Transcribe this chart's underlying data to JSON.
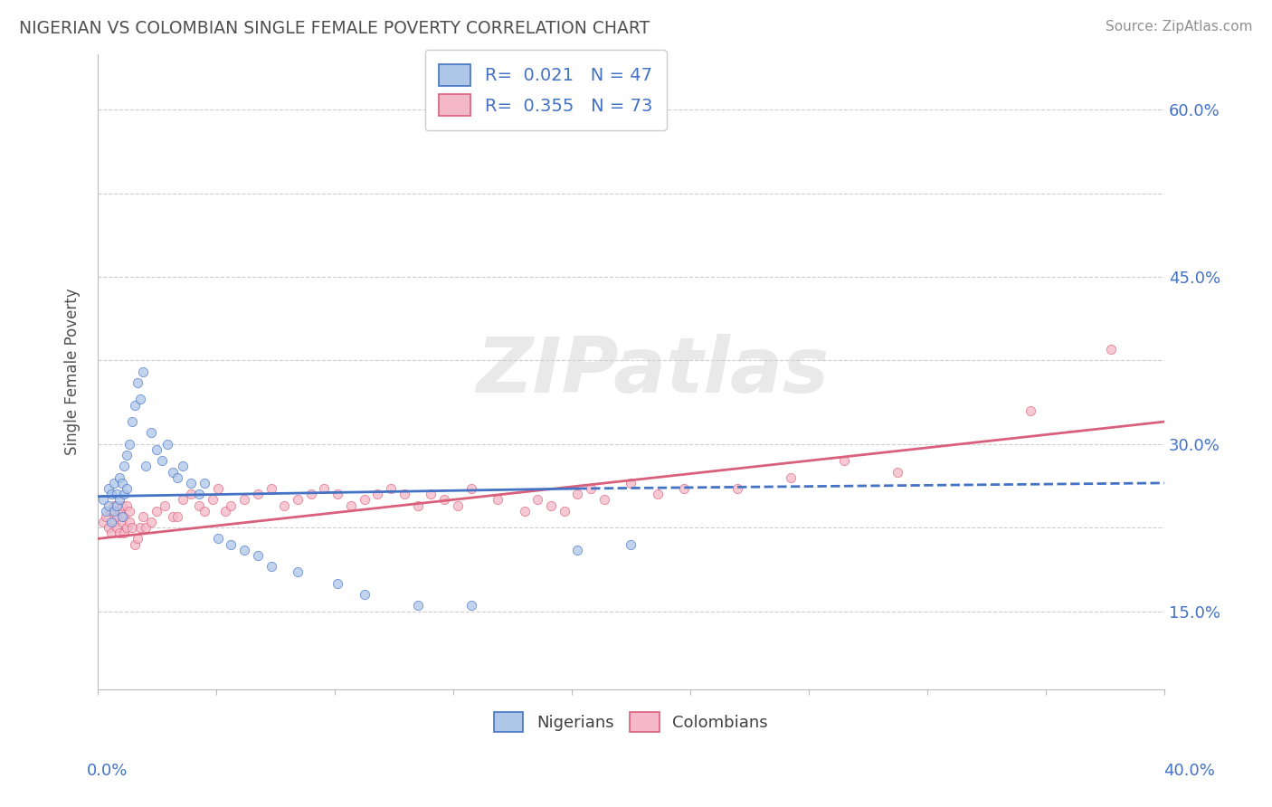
{
  "title": "NIGERIAN VS COLOMBIAN SINGLE FEMALE POVERTY CORRELATION CHART",
  "source": "Source: ZipAtlas.com",
  "ylabel": "Single Female Poverty",
  "watermark": "ZIPatlas",
  "legend_entries": [
    {
      "label": "Nigerians",
      "R": "0.021",
      "N": "47",
      "color": "#aec6e8",
      "edge": "#4472c4"
    },
    {
      "label": "Colombians",
      "R": "0.355",
      "N": "73",
      "color": "#f4b8c8",
      "edge": "#d9607a"
    }
  ],
  "nigerian_scatter_x": [
    0.002,
    0.003,
    0.004,
    0.004,
    0.005,
    0.005,
    0.006,
    0.006,
    0.007,
    0.007,
    0.008,
    0.008,
    0.009,
    0.009,
    0.01,
    0.01,
    0.011,
    0.011,
    0.012,
    0.013,
    0.014,
    0.015,
    0.016,
    0.017,
    0.018,
    0.02,
    0.022,
    0.024,
    0.026,
    0.028,
    0.03,
    0.032,
    0.035,
    0.038,
    0.04,
    0.045,
    0.05,
    0.055,
    0.06,
    0.065,
    0.075,
    0.09,
    0.1,
    0.12,
    0.14,
    0.18,
    0.2
  ],
  "nigerian_scatter_y": [
    0.25,
    0.24,
    0.245,
    0.26,
    0.23,
    0.255,
    0.265,
    0.24,
    0.255,
    0.245,
    0.27,
    0.25,
    0.235,
    0.265,
    0.28,
    0.255,
    0.29,
    0.26,
    0.3,
    0.32,
    0.335,
    0.355,
    0.34,
    0.365,
    0.28,
    0.31,
    0.295,
    0.285,
    0.3,
    0.275,
    0.27,
    0.28,
    0.265,
    0.255,
    0.265,
    0.215,
    0.21,
    0.205,
    0.2,
    0.19,
    0.185,
    0.175,
    0.165,
    0.155,
    0.155,
    0.205,
    0.21
  ],
  "colombian_scatter_x": [
    0.002,
    0.003,
    0.004,
    0.005,
    0.005,
    0.006,
    0.006,
    0.007,
    0.007,
    0.008,
    0.008,
    0.009,
    0.009,
    0.01,
    0.01,
    0.011,
    0.011,
    0.012,
    0.012,
    0.013,
    0.014,
    0.015,
    0.016,
    0.017,
    0.018,
    0.02,
    0.022,
    0.025,
    0.028,
    0.03,
    0.032,
    0.035,
    0.038,
    0.04,
    0.043,
    0.045,
    0.048,
    0.05,
    0.055,
    0.06,
    0.065,
    0.07,
    0.075,
    0.08,
    0.085,
    0.09,
    0.095,
    0.1,
    0.105,
    0.11,
    0.115,
    0.12,
    0.125,
    0.13,
    0.135,
    0.14,
    0.15,
    0.16,
    0.165,
    0.17,
    0.175,
    0.18,
    0.185,
    0.19,
    0.2,
    0.21,
    0.22,
    0.24,
    0.26,
    0.28,
    0.3,
    0.35,
    0.38
  ],
  "colombian_scatter_y": [
    0.23,
    0.235,
    0.225,
    0.24,
    0.22,
    0.23,
    0.245,
    0.235,
    0.225,
    0.24,
    0.22,
    0.23,
    0.245,
    0.235,
    0.22,
    0.225,
    0.245,
    0.23,
    0.24,
    0.225,
    0.21,
    0.215,
    0.225,
    0.235,
    0.225,
    0.23,
    0.24,
    0.245,
    0.235,
    0.235,
    0.25,
    0.255,
    0.245,
    0.24,
    0.25,
    0.26,
    0.24,
    0.245,
    0.25,
    0.255,
    0.26,
    0.245,
    0.25,
    0.255,
    0.26,
    0.255,
    0.245,
    0.25,
    0.255,
    0.26,
    0.255,
    0.245,
    0.255,
    0.25,
    0.245,
    0.26,
    0.25,
    0.24,
    0.25,
    0.245,
    0.24,
    0.255,
    0.26,
    0.25,
    0.265,
    0.255,
    0.26,
    0.26,
    0.27,
    0.285,
    0.275,
    0.33,
    0.385
  ],
  "nig_line_x": [
    0.0,
    0.18
  ],
  "nig_line_y": [
    0.253,
    0.263
  ],
  "col_line_x": [
    0.0,
    0.4
  ],
  "col_line_y": [
    0.215,
    0.32
  ],
  "nigerian_line_color": "#4472c4",
  "colombian_line_color": "#d9607a",
  "xlim": [
    0.0,
    0.4
  ],
  "ylim": [
    0.08,
    0.65
  ],
  "bg_color": "#ffffff",
  "grid_color": "#c8c8c8",
  "title_color": "#505050",
  "source_color": "#909090",
  "tick_label_color": "#4472c4",
  "y_ticks": [
    0.15,
    0.225,
    0.3,
    0.375,
    0.45,
    0.525,
    0.6
  ],
  "y_tick_labels": [
    "15.0%",
    "",
    "30.0%",
    "",
    "45.0%",
    "",
    "60.0%"
  ],
  "scatter_alpha": 0.75,
  "scatter_size": 55
}
